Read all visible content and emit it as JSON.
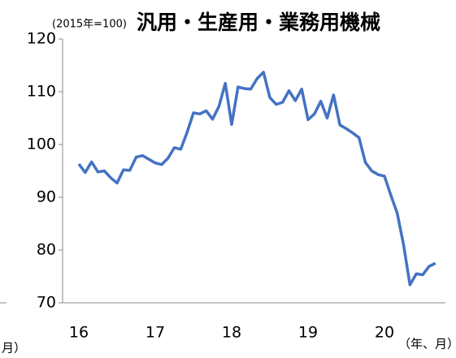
{
  "chart_data": {
    "type": "line",
    "title": "汎用・生産用・業務用機械",
    "subtitle": "(2015年=100)",
    "x_label": "（年、月）",
    "left_fragment_label": "月）",
    "categories": [
      "16",
      null,
      null,
      null,
      null,
      null,
      null,
      null,
      null,
      null,
      null,
      null,
      "17",
      null,
      null,
      null,
      null,
      null,
      null,
      null,
      null,
      null,
      null,
      null,
      "18",
      null,
      null,
      null,
      null,
      null,
      null,
      null,
      null,
      null,
      null,
      null,
      "19",
      null,
      null,
      null,
      null,
      null,
      null,
      null,
      null,
      null,
      null,
      null,
      "20",
      null,
      null,
      null,
      null,
      null,
      null,
      null,
      null
    ],
    "series": [
      {
        "color": "#4472c4",
        "values": [
          96.3,
          94.7,
          96.7,
          94.8,
          95.0,
          93.7,
          92.7,
          95.2,
          95.1,
          97.6,
          97.9,
          97.2,
          96.5,
          96.2,
          97.4,
          99.4,
          99.1,
          102.3,
          106.0,
          105.8,
          106.4,
          104.8,
          107.2,
          111.6,
          103.8,
          110.9,
          110.6,
          110.5,
          112.5,
          113.7,
          108.9,
          107.6,
          108.0,
          110.2,
          108.3,
          110.5,
          104.7,
          105.8,
          108.2,
          105.0,
          109.4,
          103.7,
          103.0,
          102.2,
          101.3,
          96.6,
          95.0,
          94.3,
          94.0,
          90.4,
          87.0,
          81.0,
          73.4,
          75.5,
          75.3,
          76.9,
          77.5
        ]
      }
    ],
    "ylim": [
      70,
      120
    ],
    "yticks": [
      70,
      80,
      90,
      100,
      110,
      120
    ],
    "grid": false
  }
}
